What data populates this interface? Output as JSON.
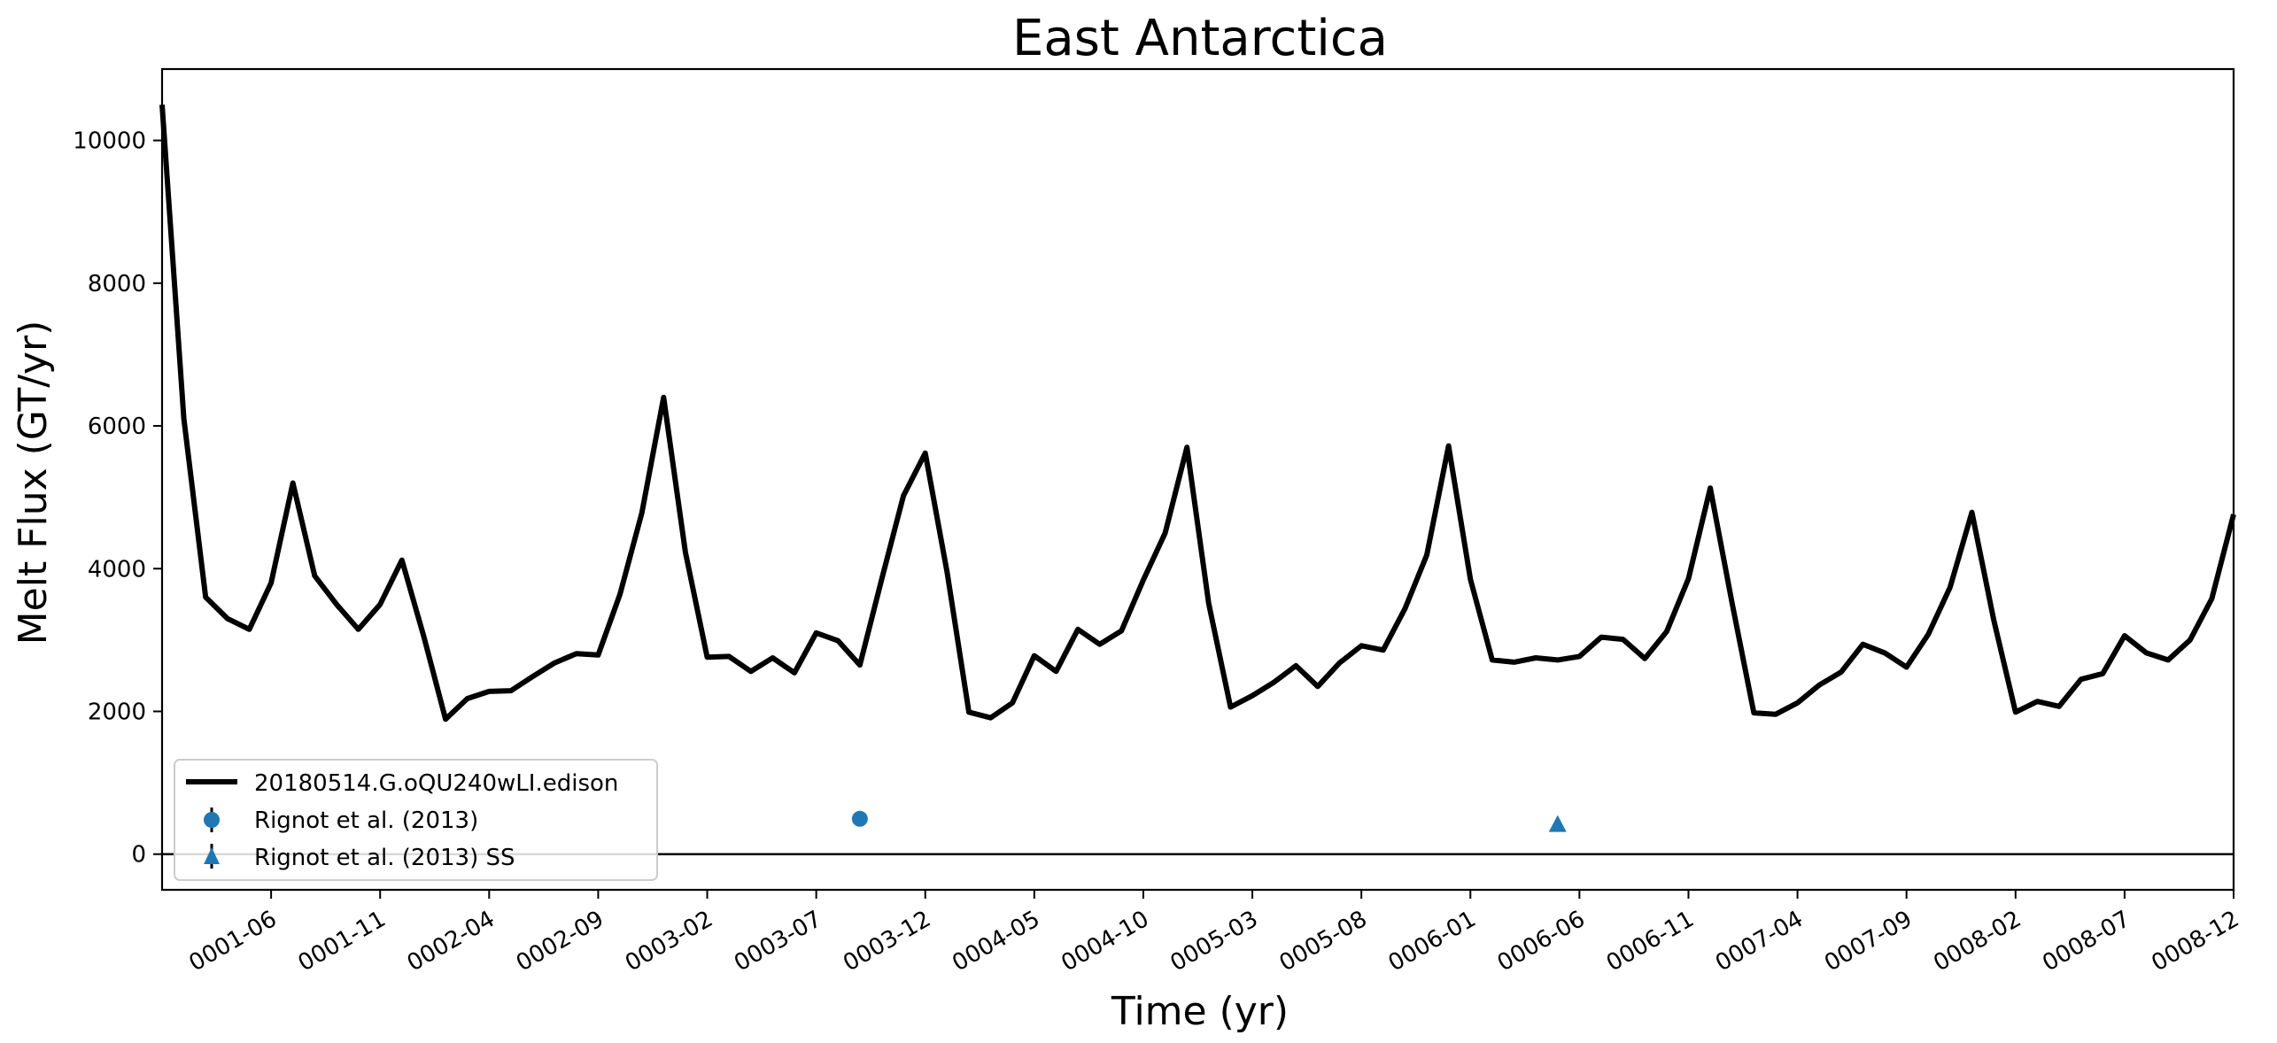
{
  "chart_data": {
    "type": "line",
    "title": "East Antarctica",
    "xlabel": "Time (yr)",
    "ylabel": "Melt Flux (GT/yr)",
    "ylim": [
      -500,
      11000
    ],
    "xlim_months": [
      "0001-01",
      "0008-12"
    ],
    "yticks": [
      0,
      2000,
      4000,
      6000,
      8000,
      10000
    ],
    "xticks": [
      "0001-06",
      "0001-11",
      "0002-04",
      "0002-09",
      "0003-02",
      "0003-07",
      "0003-12",
      "0004-05",
      "0004-10",
      "0005-03",
      "0005-08",
      "0006-01",
      "0006-06",
      "0006-11",
      "0007-04",
      "0007-09",
      "0008-02",
      "0008-07",
      "0008-12"
    ],
    "grid": false,
    "legend_position": "lower-left",
    "series": [
      {
        "name": "20180514.G.oQU240wLI.edison",
        "color": "#000000",
        "values": [
          10500,
          6100,
          3600,
          3300,
          3150,
          3800,
          5200,
          3900,
          3500,
          3150,
          3500,
          4120,
          3050,
          1890,
          2180,
          2280,
          2290,
          2490,
          2680,
          2810,
          2790,
          3640,
          4780,
          6400,
          4230,
          2760,
          2770,
          2560,
          2750,
          2540,
          3100,
          2990,
          2650,
          3850,
          5020,
          5620,
          3950,
          1990,
          1910,
          2120,
          2780,
          2560,
          3150,
          2940,
          3130,
          3840,
          4500,
          5700,
          3510,
          2060,
          2220,
          2410,
          2640,
          2350,
          2680,
          2920,
          2860,
          3440,
          4190,
          5720,
          3850,
          2720,
          2690,
          2750,
          2720,
          2770,
          3040,
          3010,
          2740,
          3120,
          3860,
          5130,
          3520,
          1980,
          1960,
          2120,
          2370,
          2550,
          2940,
          2820,
          2620,
          3080,
          3740,
          4790,
          3280,
          1990,
          2140,
          2070,
          2450,
          2530,
          3060,
          2820,
          2720,
          3000,
          3580,
          4760
        ]
      },
      {
        "name": "Rignot et al. (2013)",
        "color": "#1f77b4",
        "marker": "circle",
        "points": [
          {
            "x": "0003-09",
            "y": 495
          }
        ]
      },
      {
        "name": "Rignot et al. (2013) SS",
        "color": "#1f77b4",
        "marker": "triangle",
        "points": [
          {
            "x": "0006-05",
            "y": 410
          }
        ]
      }
    ],
    "reference_line": {
      "y": 0,
      "color": "#000000"
    }
  }
}
